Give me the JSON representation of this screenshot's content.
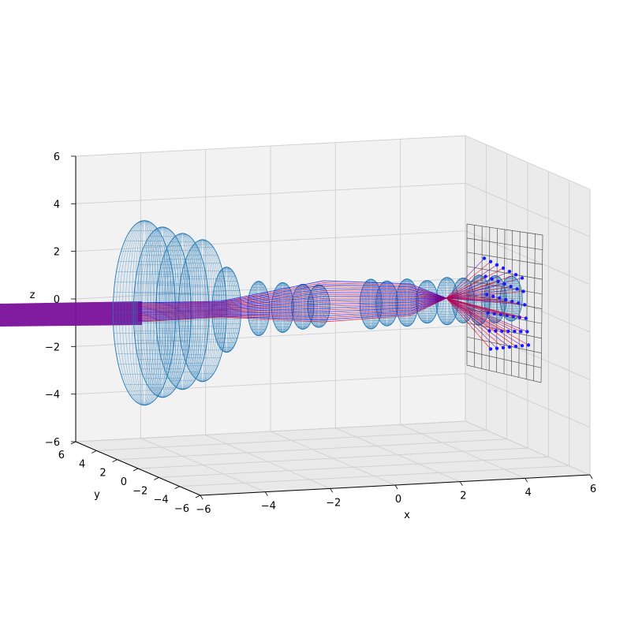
{
  "chart_data": {
    "type": "scatter",
    "projection": "3d",
    "xlabel": "x",
    "ylabel": "y",
    "zlabel": "z",
    "xlim": [
      -6,
      6
    ],
    "ylim": [
      -6,
      6
    ],
    "zlim": [
      -6,
      6
    ],
    "x_ticks": [
      "−6",
      "−4",
      "−2",
      "0",
      "2",
      "4",
      "6"
    ],
    "y_ticks": [
      "6",
      "4",
      "2",
      "0",
      "−2",
      "−4",
      "−6"
    ],
    "z_ticks": [
      "6",
      "4",
      "2",
      "0",
      "−2",
      "−4",
      "−6"
    ],
    "grid": true,
    "colors": {
      "lens_mesh": "#1f77b4",
      "ray_red": "#e8001f",
      "ray_blue": "#0000ff",
      "ray_mix": "#7a0f9a",
      "spot_points": "#1a1aff",
      "sensor_grid": "#555555",
      "pane_fill": "#f2f2f2",
      "pane_grid": "#cfcfcf"
    },
    "lens_elements": [
      {
        "x": -5.35,
        "radius": 3.9
      },
      {
        "x": -4.9,
        "radius": 3.6
      },
      {
        "x": -4.4,
        "radius": 3.3
      },
      {
        "x": -3.9,
        "radius": 3.0
      },
      {
        "x": -3.3,
        "radius": 1.8
      },
      {
        "x": -2.5,
        "radius": 1.15
      },
      {
        "x": -1.9,
        "radius": 1.05
      },
      {
        "x": -1.4,
        "radius": 0.95
      },
      {
        "x": -1.0,
        "radius": 0.9
      },
      {
        "x": 0.3,
        "radius": 1.05
      },
      {
        "x": 0.7,
        "radius": 0.95
      },
      {
        "x": 1.2,
        "radius": 1.0
      },
      {
        "x": 1.7,
        "radius": 0.9
      },
      {
        "x": 2.2,
        "radius": 1.0
      },
      {
        "x": 2.6,
        "radius": 0.95
      },
      {
        "x": 3.0,
        "radius": 1.05
      },
      {
        "x": 3.4,
        "radius": 1.0
      },
      {
        "x": 3.8,
        "radius": 0.95
      }
    ],
    "sensor_plane": {
      "x": 6.0,
      "half_width": 2.5,
      "grid_divisions": 10
    },
    "spot_points_count": 42
  }
}
